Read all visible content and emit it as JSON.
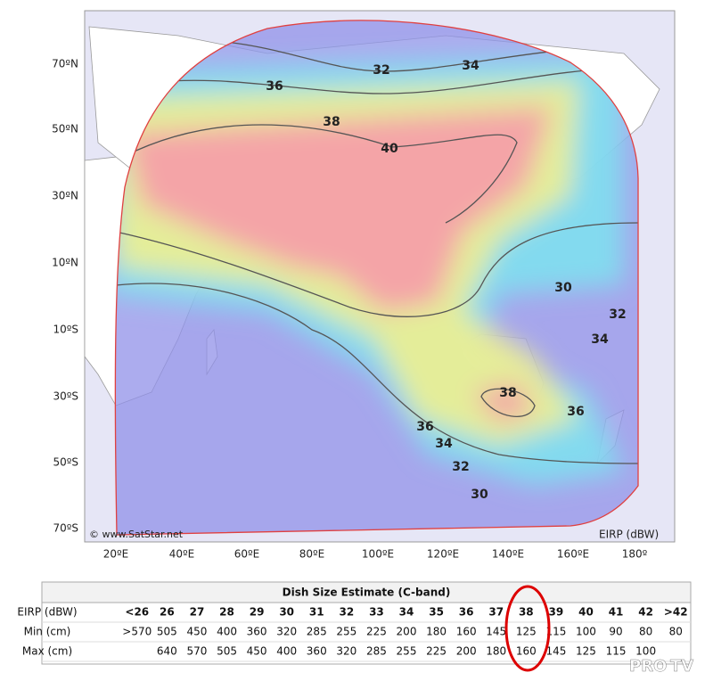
{
  "map": {
    "lat_labels": [
      "70ºN",
      "50ºN",
      "30ºN",
      "10ºN",
      "10ºS",
      "30ºS",
      "50ºS",
      "70ºS"
    ],
    "lon_labels": [
      "20ºE",
      "40ºE",
      "60ºE",
      "80ºE",
      "100ºE",
      "120ºE",
      "140ºE",
      "160ºE",
      "180º"
    ],
    "contour_labels": [
      "32",
      "34",
      "36",
      "38",
      "40",
      "30",
      "32",
      "34",
      "38",
      "36",
      "36",
      "34",
      "32",
      "30"
    ],
    "copyright": "© www.SatStar.net",
    "unit": "EIRP (dBW)"
  },
  "table": {
    "title": "Dish Size Estimate (C-band)",
    "rows": [
      [
        "EIRP (dBW)",
        "<26",
        "26",
        "27",
        "28",
        "29",
        "30",
        "31",
        "32",
        "33",
        "34",
        "35",
        "36",
        "37",
        "38",
        "39",
        "40",
        "41",
        "42",
        ">42"
      ],
      [
        "Min (cm)",
        ">570",
        "505",
        "450",
        "400",
        "360",
        "320",
        "285",
        "255",
        "225",
        "200",
        "180",
        "160",
        "145",
        "125",
        "115",
        "100",
        "90",
        "80",
        "80"
      ],
      [
        "Max (cm)",
        null,
        "640",
        "570",
        "505",
        "450",
        "400",
        "360",
        "320",
        "285",
        "255",
        "225",
        "200",
        "180",
        "160",
        "145",
        "125",
        "115",
        "100",
        null
      ]
    ]
  },
  "watermark": {
    "left": "PRO",
    "right": "TV"
  }
}
